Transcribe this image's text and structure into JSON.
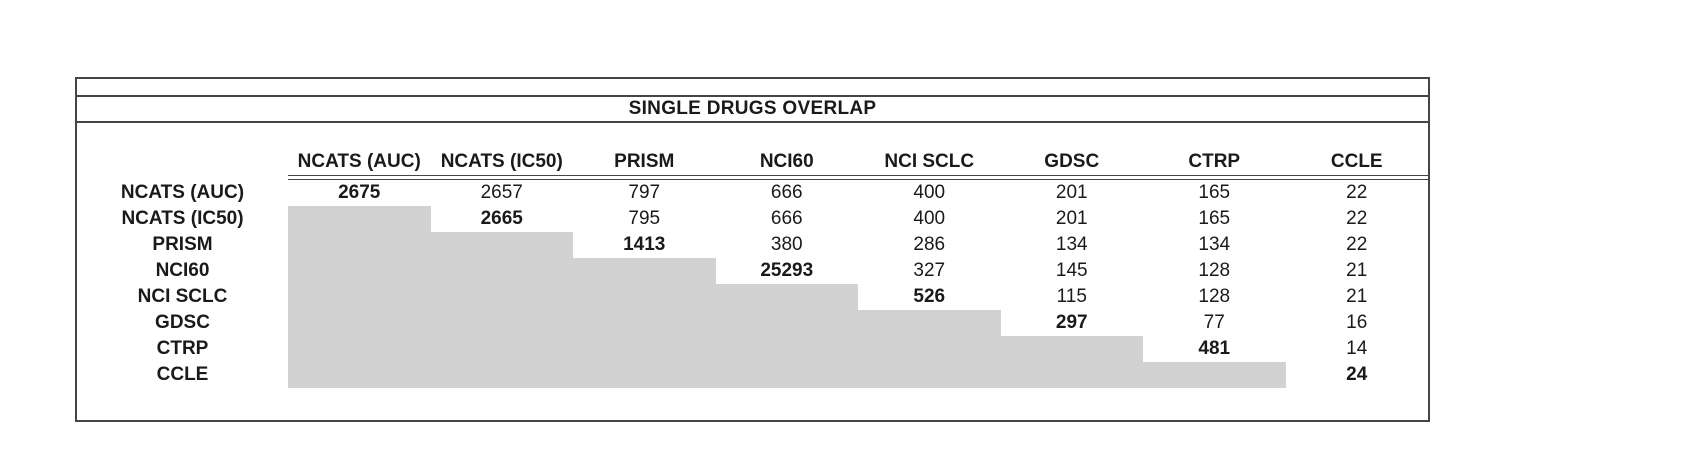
{
  "chart_data": {
    "type": "table",
    "title": "SINGLE DRUGS OVERLAP",
    "columns": [
      "NCATS (AUC)",
      "NCATS (IC50)",
      "PRISM",
      "NCI60",
      "NCI SCLC",
      "GDSC",
      "CTRP",
      "CCLE"
    ],
    "row_labels": [
      "NCATS (AUC)",
      "NCATS (IC50)",
      "PRISM",
      "NCI60",
      "NCI SCLC",
      "GDSC",
      "CTRP",
      "CCLE"
    ],
    "matrix": [
      [
        2675,
        2657,
        797,
        666,
        400,
        201,
        165,
        22
      ],
      [
        null,
        2665,
        795,
        666,
        400,
        201,
        165,
        22
      ],
      [
        null,
        null,
        1413,
        380,
        286,
        134,
        134,
        22
      ],
      [
        null,
        null,
        null,
        25293,
        327,
        145,
        128,
        21
      ],
      [
        null,
        null,
        null,
        null,
        526,
        115,
        128,
        21
      ],
      [
        null,
        null,
        null,
        null,
        null,
        297,
        77,
        16
      ],
      [
        null,
        null,
        null,
        null,
        null,
        null,
        481,
        14
      ],
      [
        null,
        null,
        null,
        null,
        null,
        null,
        null,
        24
      ]
    ],
    "style": {
      "diagonal_bold": true,
      "lower_triangle_shaded": true,
      "shade_color": "#d2d2d2",
      "border_color": "#454545",
      "background_color": "#ffffff"
    }
  }
}
